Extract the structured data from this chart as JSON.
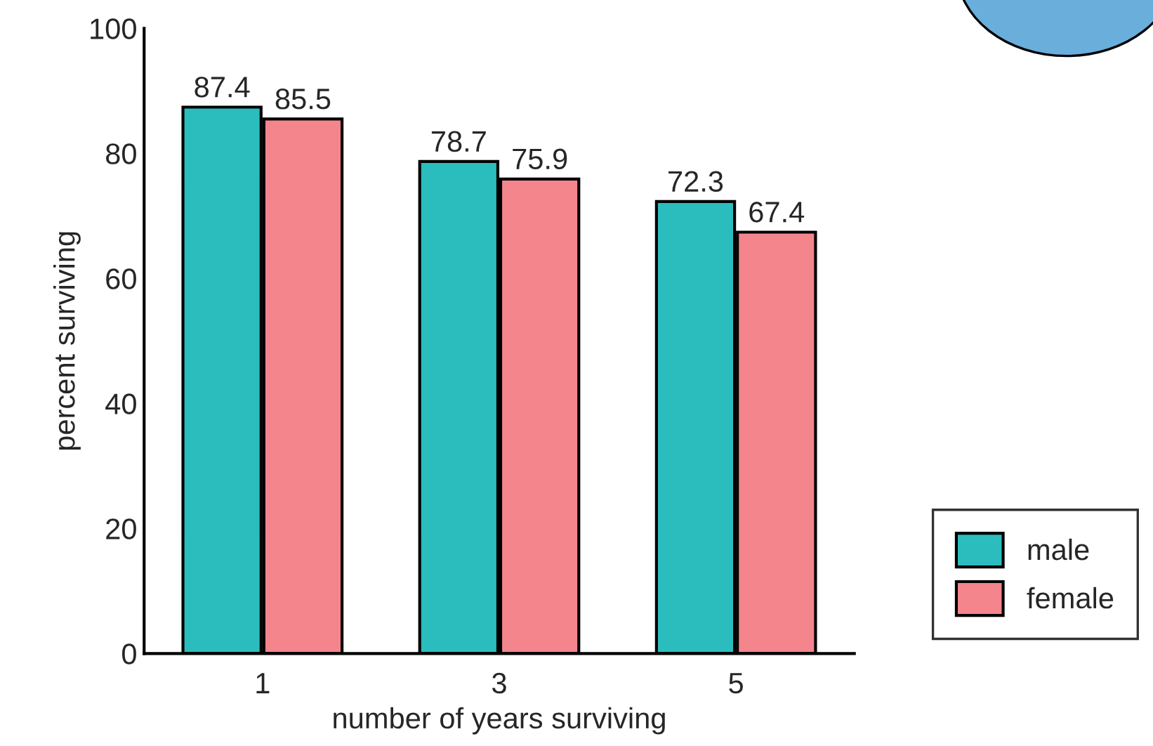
{
  "chart_data": {
    "type": "bar",
    "xlabel": "number of years surviving",
    "ylabel": "percent surviving",
    "categories": [
      "1",
      "3",
      "5"
    ],
    "series": [
      {
        "name": "male",
        "color": "#2bbdbd",
        "values": [
          87.4,
          78.7,
          72.3
        ]
      },
      {
        "name": "female",
        "color": "#f4858d",
        "values": [
          85.5,
          75.9,
          67.4
        ]
      }
    ],
    "ylim": [
      0,
      100
    ],
    "yticks": [
      0,
      20,
      40,
      60,
      80,
      100
    ],
    "data_labels": true,
    "grid": false,
    "legend": "bottom right"
  }
}
